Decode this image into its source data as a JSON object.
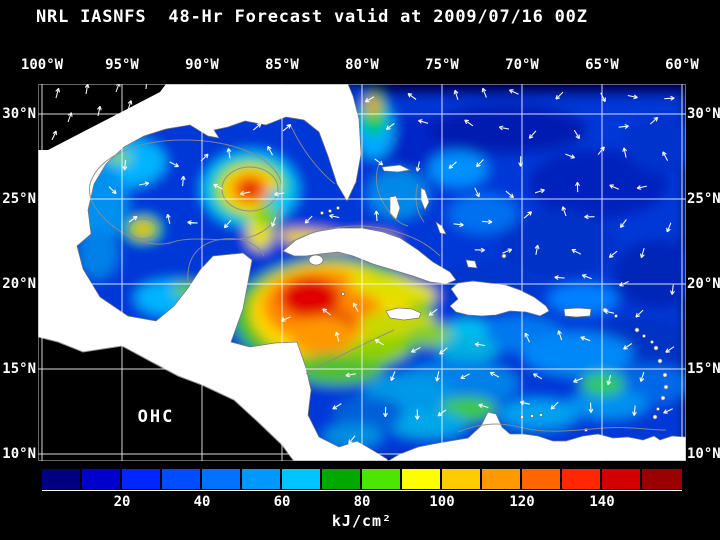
{
  "title": "NRL IASNFS  48-Hr Forecast valid at 2009/07/16 00Z",
  "map": {
    "lon_labels": [
      "100°W",
      "95°W",
      "90°W",
      "85°W",
      "80°W",
      "75°W",
      "70°W",
      "65°W",
      "60°W"
    ],
    "lat_labels": [
      "30°N",
      "25°N",
      "20°N",
      "15°N",
      "10°N"
    ],
    "region_label": "OHC"
  },
  "colorbar": {
    "tick_labels": [
      "20",
      "40",
      "60",
      "80",
      "100",
      "120",
      "140"
    ],
    "units_label": "kJ/cm²",
    "colors": [
      "#000080",
      "#0000cc",
      "#0026ff",
      "#004cff",
      "#0072ff",
      "#0098ff",
      "#00c4ff",
      "#00a800",
      "#4ce600",
      "#ffff00",
      "#ffcc00",
      "#ff9900",
      "#ff6600",
      "#ff2600",
      "#d40000",
      "#9a0000"
    ]
  },
  "chart_data": {
    "type": "heatmap",
    "title": "NRL IASNFS  48-Hr Forecast valid at 2009/07/16 00Z",
    "variable_label": "OHC",
    "units": "kJ/cm²",
    "x_tick_labels": [
      "100°W",
      "95°W",
      "90°W",
      "85°W",
      "80°W",
      "75°W",
      "70°W",
      "65°W",
      "60°W"
    ],
    "y_tick_labels": [
      "30°N",
      "25°N",
      "20°N",
      "15°N",
      "10°N"
    ],
    "colorbar_ticks": [
      20,
      40,
      60,
      80,
      100,
      120,
      140
    ],
    "colorbar_range": [
      0,
      160
    ],
    "legend_position": "bottom",
    "grid": true
  }
}
